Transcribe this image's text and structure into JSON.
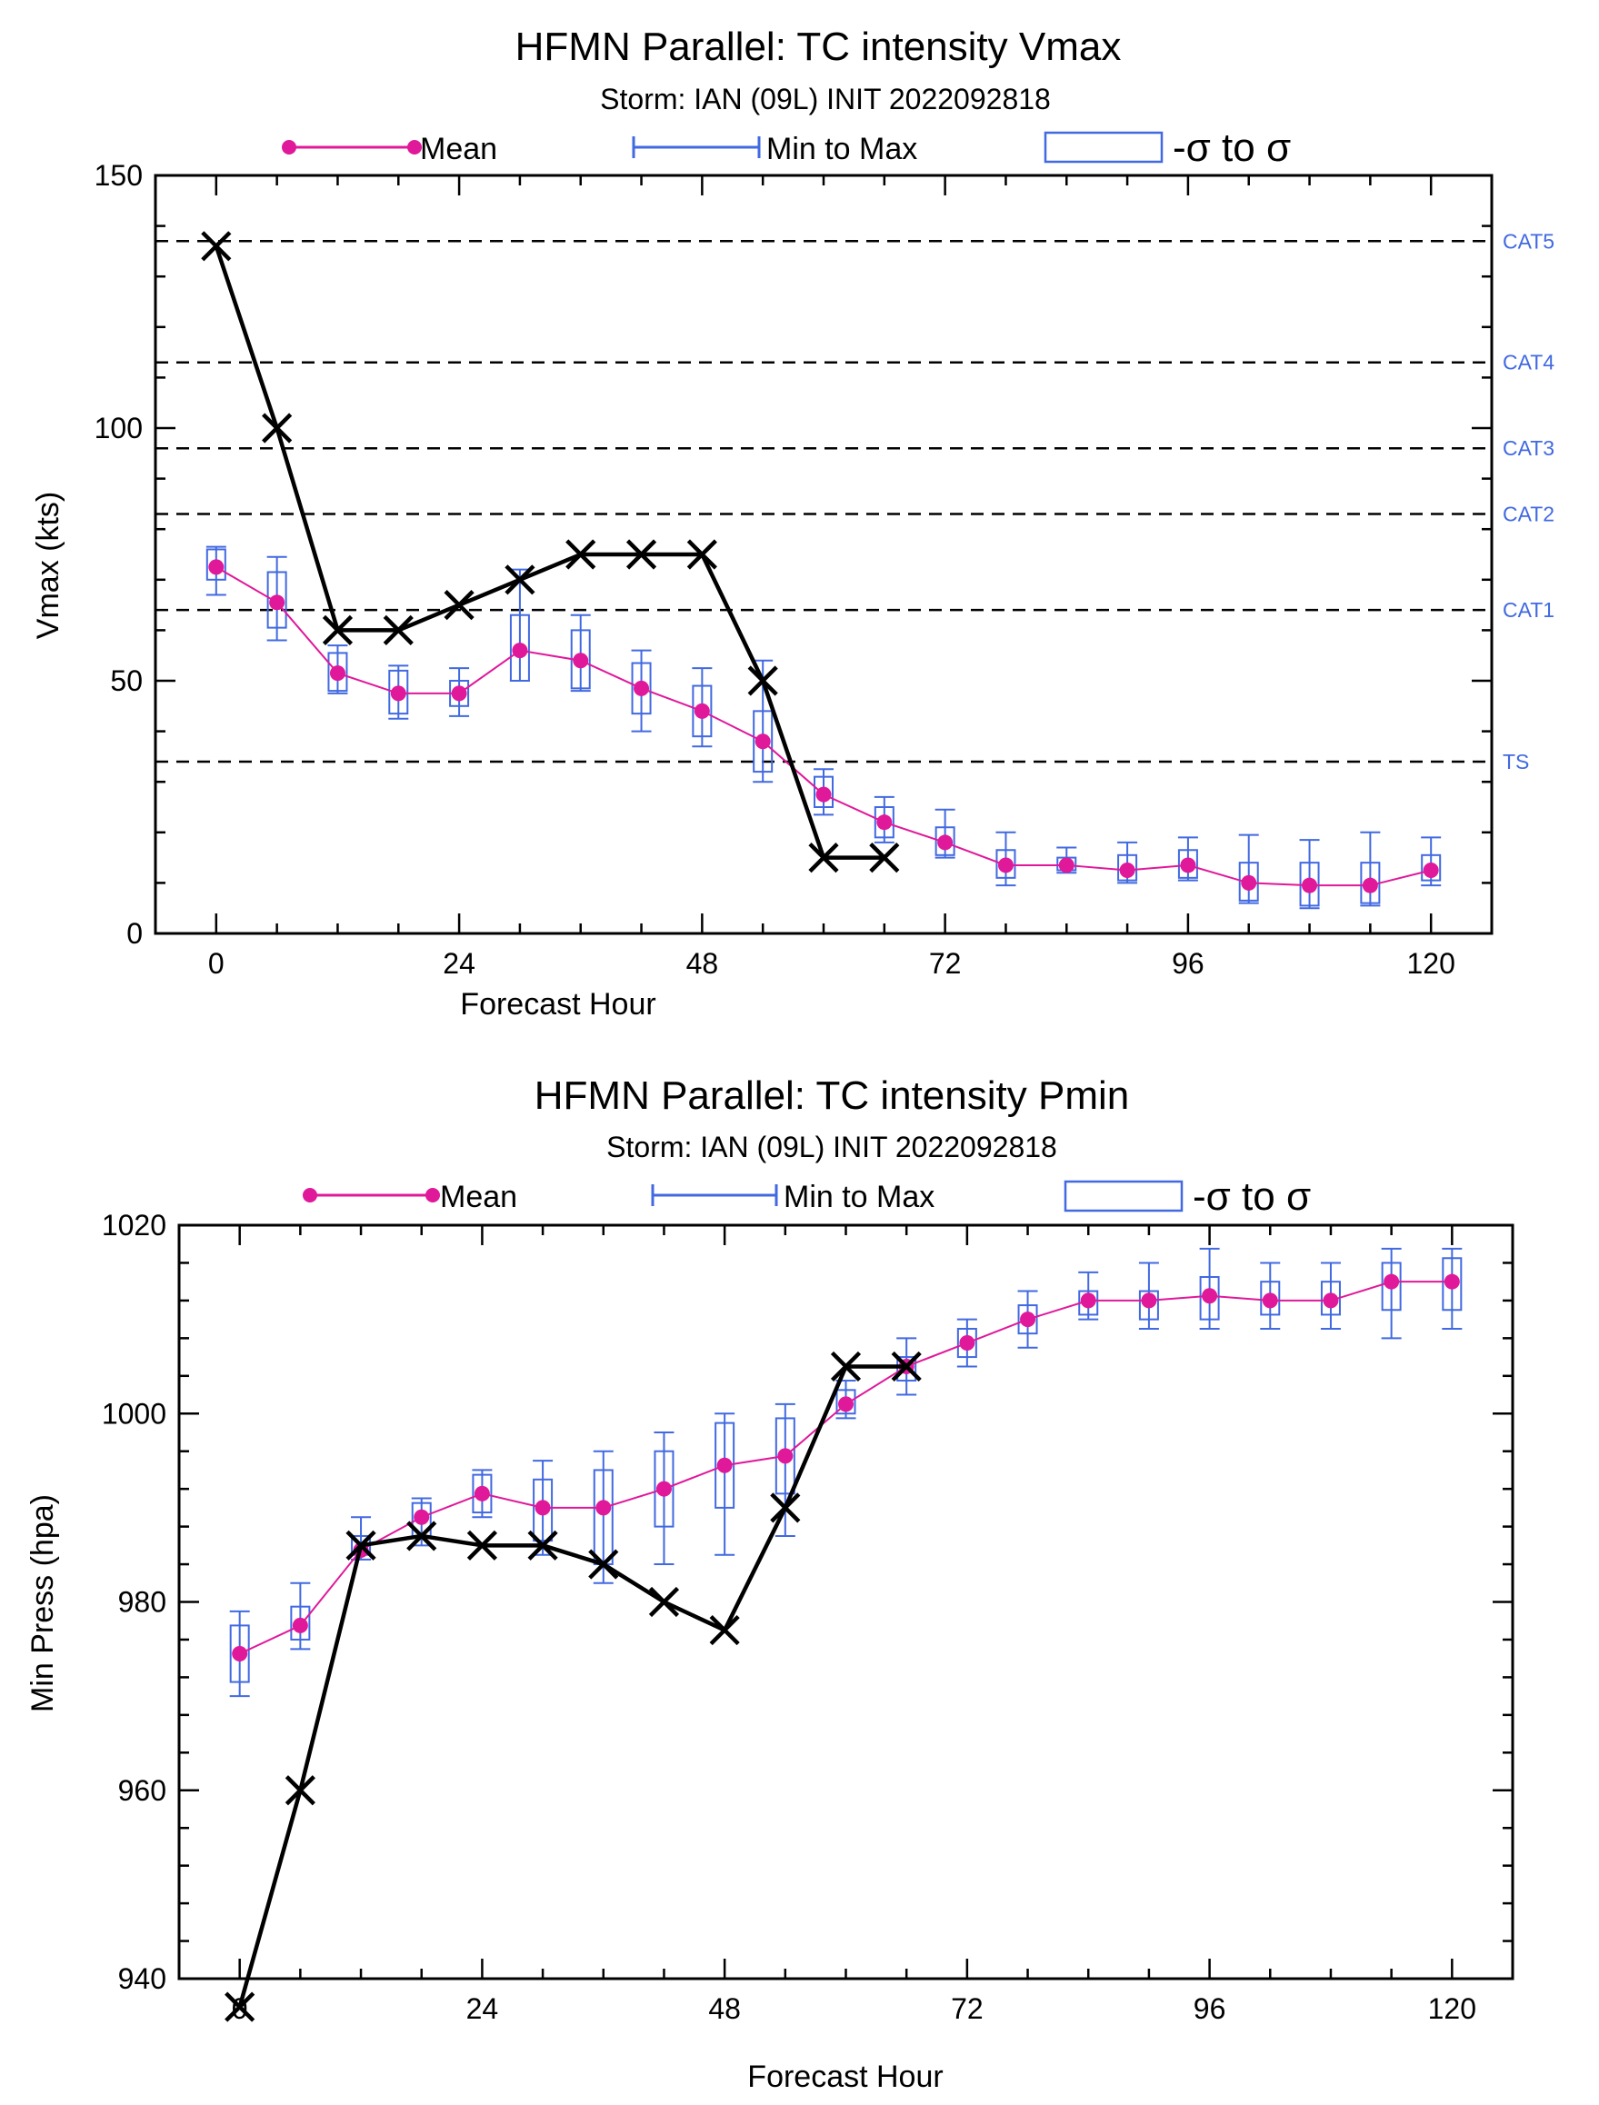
{
  "colors": {
    "mean": "#e0189a",
    "minmax": "#4169e1",
    "observed": "#000000",
    "threshold": "#000000",
    "category_label": "#4169e1"
  },
  "legend": {
    "mean_label": "Mean",
    "minmax_label": "Min to Max",
    "sigma_label": "-σ to σ"
  },
  "chart_data": [
    {
      "type": "line",
      "title": "HFMN Parallel: TC intensity Vmax",
      "subtitle": "Storm: IAN (09L) INIT 2022092818",
      "xlabel": "Forecast Hour",
      "ylabel": "Vmax (kts)",
      "xlim": [
        -6,
        126
      ],
      "ylim": [
        0,
        150
      ],
      "xticks": [
        0,
        24,
        48,
        72,
        96,
        120
      ],
      "yticks": [
        0,
        50,
        100,
        150
      ],
      "grid": false,
      "thresholds": [
        {
          "label": "CAT5",
          "value": 137
        },
        {
          "label": "CAT4",
          "value": 113
        },
        {
          "label": "CAT3",
          "value": 96
        },
        {
          "label": "CAT2",
          "value": 83
        },
        {
          "label": "CAT1",
          "value": 64
        },
        {
          "label": "TS",
          "value": 34
        }
      ],
      "ensemble": [
        {
          "x": 0,
          "mean": 72.5,
          "min": 67,
          "max": 76.5,
          "sigma_low": 70,
          "sigma_high": 76
        },
        {
          "x": 6,
          "mean": 65.5,
          "min": 58,
          "max": 74.5,
          "sigma_low": 60.5,
          "sigma_high": 71.5
        },
        {
          "x": 12,
          "mean": 51.5,
          "min": 47.5,
          "max": 57,
          "sigma_low": 48,
          "sigma_high": 55.5
        },
        {
          "x": 18,
          "mean": 47.5,
          "min": 42.5,
          "max": 53,
          "sigma_low": 43.5,
          "sigma_high": 52
        },
        {
          "x": 24,
          "mean": 47.5,
          "min": 43,
          "max": 52.5,
          "sigma_low": 45,
          "sigma_high": 50
        },
        {
          "x": 30,
          "mean": 56,
          "min": 50,
          "max": 72,
          "sigma_low": 50,
          "sigma_high": 63
        },
        {
          "x": 36,
          "mean": 54,
          "min": 48,
          "max": 63,
          "sigma_low": 48.5,
          "sigma_high": 60
        },
        {
          "x": 42,
          "mean": 48.5,
          "min": 40,
          "max": 56,
          "sigma_low": 43.5,
          "sigma_high": 53.5
        },
        {
          "x": 48,
          "mean": 44,
          "min": 37,
          "max": 52.5,
          "sigma_low": 39,
          "sigma_high": 49
        },
        {
          "x": 54,
          "mean": 38,
          "min": 30,
          "max": 54,
          "sigma_low": 32,
          "sigma_high": 44
        },
        {
          "x": 60,
          "mean": 27.5,
          "min": 23.5,
          "max": 32.5,
          "sigma_low": 25,
          "sigma_high": 31
        },
        {
          "x": 66,
          "mean": 22,
          "min": 18,
          "max": 27,
          "sigma_low": 19,
          "sigma_high": 25
        },
        {
          "x": 72,
          "mean": 18,
          "min": 15,
          "max": 24.5,
          "sigma_low": 15.5,
          "sigma_high": 21
        },
        {
          "x": 78,
          "mean": 13.5,
          "min": 9.5,
          "max": 20,
          "sigma_low": 11,
          "sigma_high": 16.5
        },
        {
          "x": 84,
          "mean": 13.5,
          "min": 12,
          "max": 17,
          "sigma_low": 12.5,
          "sigma_high": 15
        },
        {
          "x": 90,
          "mean": 12.5,
          "min": 10,
          "max": 18,
          "sigma_low": 10.5,
          "sigma_high": 15.5
        },
        {
          "x": 96,
          "mean": 13.5,
          "min": 10.5,
          "max": 19,
          "sigma_low": 11,
          "sigma_high": 16.5
        },
        {
          "x": 102,
          "mean": 10,
          "min": 6,
          "max": 19.5,
          "sigma_low": 6.5,
          "sigma_high": 14
        },
        {
          "x": 108,
          "mean": 9.5,
          "min": 5,
          "max": 18.5,
          "sigma_low": 5.5,
          "sigma_high": 14
        },
        {
          "x": 114,
          "mean": 9.5,
          "min": 5.5,
          "max": 20,
          "sigma_low": 6,
          "sigma_high": 14
        },
        {
          "x": 120,
          "mean": 12.5,
          "min": 9.5,
          "max": 19,
          "sigma_low": 10.5,
          "sigma_high": 15.5
        }
      ],
      "observed": {
        "x": [
          0,
          6,
          12,
          18,
          24,
          30,
          36,
          42,
          48,
          54,
          60,
          66
        ],
        "y": [
          136,
          100,
          60,
          60,
          65,
          70,
          75,
          75,
          75,
          50,
          15,
          15
        ]
      }
    },
    {
      "type": "line",
      "title": "HFMN Parallel: TC intensity Pmin",
      "subtitle": "Storm: IAN (09L) INIT 2022092818",
      "xlabel": "Forecast Hour",
      "ylabel": "Min Press (hpa)",
      "xlim": [
        -6,
        126
      ],
      "ylim": [
        940,
        1020
      ],
      "xticks": [
        0,
        24,
        48,
        72,
        96,
        120
      ],
      "yticks": [
        940,
        960,
        980,
        1000,
        1020
      ],
      "grid": false,
      "ensemble": [
        {
          "x": 0,
          "mean": 974.5,
          "min": 970,
          "max": 979,
          "sigma_low": 971.5,
          "sigma_high": 977.5
        },
        {
          "x": 6,
          "mean": 977.5,
          "min": 975,
          "max": 982,
          "sigma_low": 976,
          "sigma_high": 979.5
        },
        {
          "x": 12,
          "mean": 985.5,
          "min": 984.5,
          "max": 989,
          "sigma_low": 985,
          "sigma_high": 987
        },
        {
          "x": 18,
          "mean": 989,
          "min": 986,
          "max": 991,
          "sigma_low": 987,
          "sigma_high": 990.5
        },
        {
          "x": 24,
          "mean": 991.5,
          "min": 989,
          "max": 994,
          "sigma_low": 989.5,
          "sigma_high": 993.5
        },
        {
          "x": 30,
          "mean": 990,
          "min": 985,
          "max": 995,
          "sigma_low": 986.5,
          "sigma_high": 993
        },
        {
          "x": 36,
          "mean": 990,
          "min": 982,
          "max": 996,
          "sigma_low": 984,
          "sigma_high": 994
        },
        {
          "x": 42,
          "mean": 992,
          "min": 984,
          "max": 998,
          "sigma_low": 988,
          "sigma_high": 996
        },
        {
          "x": 48,
          "mean": 994.5,
          "min": 985,
          "max": 1000,
          "sigma_low": 990,
          "sigma_high": 999
        },
        {
          "x": 54,
          "mean": 995.5,
          "min": 987,
          "max": 1001,
          "sigma_low": 991.5,
          "sigma_high": 999.5
        },
        {
          "x": 60,
          "mean": 1001,
          "min": 999.5,
          "max": 1003.5,
          "sigma_low": 1000,
          "sigma_high": 1002.5
        },
        {
          "x": 66,
          "mean": 1005,
          "min": 1002,
          "max": 1008,
          "sigma_low": 1003.5,
          "sigma_high": 1006
        },
        {
          "x": 72,
          "mean": 1007.5,
          "min": 1005,
          "max": 1010,
          "sigma_low": 1006,
          "sigma_high": 1009
        },
        {
          "x": 78,
          "mean": 1010,
          "min": 1007,
          "max": 1013,
          "sigma_low": 1008.5,
          "sigma_high": 1011.5
        },
        {
          "x": 84,
          "mean": 1012,
          "min": 1010,
          "max": 1015,
          "sigma_low": 1010.5,
          "sigma_high": 1013
        },
        {
          "x": 90,
          "mean": 1012,
          "min": 1009,
          "max": 1016,
          "sigma_low": 1010,
          "sigma_high": 1013
        },
        {
          "x": 96,
          "mean": 1012.5,
          "min": 1009,
          "max": 1017.5,
          "sigma_low": 1010,
          "sigma_high": 1014.5
        },
        {
          "x": 102,
          "mean": 1012,
          "min": 1009,
          "max": 1016,
          "sigma_low": 1010.5,
          "sigma_high": 1014
        },
        {
          "x": 108,
          "mean": 1012,
          "min": 1009,
          "max": 1016,
          "sigma_low": 1010.5,
          "sigma_high": 1014
        },
        {
          "x": 114,
          "mean": 1014,
          "min": 1008,
          "max": 1017.5,
          "sigma_low": 1011,
          "sigma_high": 1016
        },
        {
          "x": 120,
          "mean": 1014,
          "min": 1009,
          "max": 1017.5,
          "sigma_low": 1011,
          "sigma_high": 1016.5
        }
      ],
      "observed": {
        "x": [
          0,
          6,
          12,
          18,
          24,
          30,
          36,
          42,
          48,
          54,
          60,
          66
        ],
        "y": [
          937,
          960,
          986,
          987,
          986,
          986,
          984,
          980,
          977,
          990,
          1005,
          1005
        ]
      }
    }
  ]
}
